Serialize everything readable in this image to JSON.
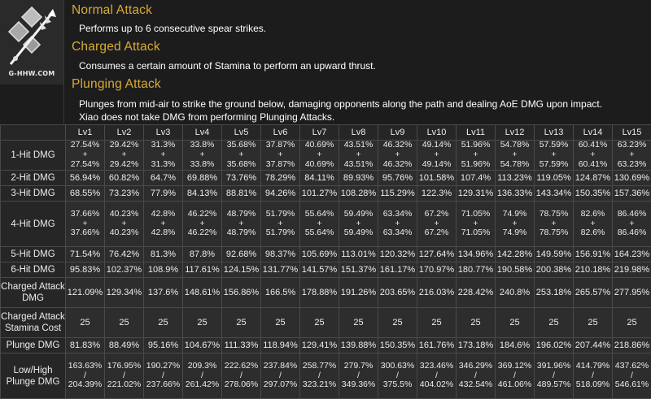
{
  "icon": {
    "name": "spear-talent-icon",
    "watermark": "G-HHW.COM"
  },
  "sections": [
    {
      "title": "Normal Attack",
      "desc": [
        "Performs up to 6 consecutive spear strikes."
      ]
    },
    {
      "title": "Charged Attack",
      "desc": [
        "Consumes a certain amount of Stamina to perform an upward thrust."
      ]
    },
    {
      "title": "Plunging Attack",
      "desc": [
        "Plunges from mid-air to strike the ground below, damaging opponents along the path and dealing AoE DMG upon impact.",
        "Xiao does not take DMG from performing Plunging Attacks."
      ]
    }
  ],
  "table": {
    "levels": [
      "Lv1",
      "Lv2",
      "Lv3",
      "Lv4",
      "Lv5",
      "Lv6",
      "Lv7",
      "Lv8",
      "Lv9",
      "Lv10",
      "Lv11",
      "Lv12",
      "Lv13",
      "Lv14",
      "Lv15"
    ],
    "rows": [
      {
        "label": "1-Hit DMG",
        "values": [
          [
            "27.54%",
            "+",
            "27.54%"
          ],
          [
            "29.42%",
            "+",
            "29.42%"
          ],
          [
            "31.3%",
            "+",
            "31.3%"
          ],
          [
            "33.8%",
            "+",
            "33.8%"
          ],
          [
            "35.68%",
            "+",
            "35.68%"
          ],
          [
            "37.87%",
            "+",
            "37.87%"
          ],
          [
            "40.69%",
            "+",
            "40.69%"
          ],
          [
            "43.51%",
            "+",
            "43.51%"
          ],
          [
            "46.32%",
            "+",
            "46.32%"
          ],
          [
            "49.14%",
            "+",
            "49.14%"
          ],
          [
            "51.96%",
            "+",
            "51.96%"
          ],
          [
            "54.78%",
            "+",
            "54.78%"
          ],
          [
            "57.59%",
            "+",
            "57.59%"
          ],
          [
            "60.41%",
            "+",
            "60.41%"
          ],
          [
            "63.23%",
            "+",
            "63.23%"
          ]
        ]
      },
      {
        "label": "2-Hit DMG",
        "values": [
          [
            "56.94%"
          ],
          [
            "60.82%"
          ],
          [
            "64.7%"
          ],
          [
            "69.88%"
          ],
          [
            "73.76%"
          ],
          [
            "78.29%"
          ],
          [
            "84.11%"
          ],
          [
            "89.93%"
          ],
          [
            "95.76%"
          ],
          [
            "101.58%"
          ],
          [
            "107.4%"
          ],
          [
            "113.23%"
          ],
          [
            "119.05%"
          ],
          [
            "124.87%"
          ],
          [
            "130.69%"
          ]
        ]
      },
      {
        "label": "3-Hit DMG",
        "values": [
          [
            "68.55%"
          ],
          [
            "73.23%"
          ],
          [
            "77.9%"
          ],
          [
            "84.13%"
          ],
          [
            "88.81%"
          ],
          [
            "94.26%"
          ],
          [
            "101.27%"
          ],
          [
            "108.28%"
          ],
          [
            "115.29%"
          ],
          [
            "122.3%"
          ],
          [
            "129.31%"
          ],
          [
            "136.33%"
          ],
          [
            "143.34%"
          ],
          [
            "150.35%"
          ],
          [
            "157.36%"
          ]
        ]
      },
      {
        "label": "4-Hit DMG",
        "values": [
          [
            "37.66%",
            "+",
            "37.66%"
          ],
          [
            "40.23%",
            "+",
            "40.23%"
          ],
          [
            "42.8%",
            "+",
            "42.8%"
          ],
          [
            "46.22%",
            "+",
            "46.22%"
          ],
          [
            "48.79%",
            "+",
            "48.79%"
          ],
          [
            "51.79%",
            "+",
            "51.79%"
          ],
          [
            "55.64%",
            "+",
            "55.64%"
          ],
          [
            "59.49%",
            "+",
            "59.49%"
          ],
          [
            "63.34%",
            "+",
            "63.34%"
          ],
          [
            "67.2%",
            "+",
            "67.2%"
          ],
          [
            "71.05%",
            "+",
            "71.05%"
          ],
          [
            "74.9%",
            "+",
            "74.9%"
          ],
          [
            "78.75%",
            "+",
            "78.75%"
          ],
          [
            "82.6%",
            "+",
            "82.6%"
          ],
          [
            "86.46%",
            "+",
            "86.46%"
          ]
        ]
      },
      {
        "label": "5-Hit DMG",
        "values": [
          [
            "71.54%"
          ],
          [
            "76.42%"
          ],
          [
            "81.3%"
          ],
          [
            "87.8%"
          ],
          [
            "92.68%"
          ],
          [
            "98.37%"
          ],
          [
            "105.69%"
          ],
          [
            "113.01%"
          ],
          [
            "120.32%"
          ],
          [
            "127.64%"
          ],
          [
            "134.96%"
          ],
          [
            "142.28%"
          ],
          [
            "149.59%"
          ],
          [
            "156.91%"
          ],
          [
            "164.23%"
          ]
        ]
      },
      {
        "label": "6-Hit DMG",
        "values": [
          [
            "95.83%"
          ],
          [
            "102.37%"
          ],
          [
            "108.9%"
          ],
          [
            "117.61%"
          ],
          [
            "124.15%"
          ],
          [
            "131.77%"
          ],
          [
            "141.57%"
          ],
          [
            "151.37%"
          ],
          [
            "161.17%"
          ],
          [
            "170.97%"
          ],
          [
            "180.77%"
          ],
          [
            "190.58%"
          ],
          [
            "200.38%"
          ],
          [
            "210.18%"
          ],
          [
            "219.98%"
          ]
        ]
      },
      {
        "label": "Charged Attack DMG",
        "values": [
          [
            "121.09%"
          ],
          [
            "129.34%"
          ],
          [
            "137.6%"
          ],
          [
            "148.61%"
          ],
          [
            "156.86%"
          ],
          [
            "166.5%"
          ],
          [
            "178.88%"
          ],
          [
            "191.26%"
          ],
          [
            "203.65%"
          ],
          [
            "216.03%"
          ],
          [
            "228.42%"
          ],
          [
            "240.8%"
          ],
          [
            "253.18%"
          ],
          [
            "265.57%"
          ],
          [
            "277.95%"
          ]
        ]
      },
      {
        "label": "Charged Attack Stamina Cost",
        "values": [
          [
            "25"
          ],
          [
            "25"
          ],
          [
            "25"
          ],
          [
            "25"
          ],
          [
            "25"
          ],
          [
            "25"
          ],
          [
            "25"
          ],
          [
            "25"
          ],
          [
            "25"
          ],
          [
            "25"
          ],
          [
            "25"
          ],
          [
            "25"
          ],
          [
            "25"
          ],
          [
            "25"
          ],
          [
            "25"
          ]
        ]
      },
      {
        "label": "Plunge DMG",
        "values": [
          [
            "81.83%"
          ],
          [
            "88.49%"
          ],
          [
            "95.16%"
          ],
          [
            "104.67%"
          ],
          [
            "111.33%"
          ],
          [
            "118.94%"
          ],
          [
            "129.41%"
          ],
          [
            "139.88%"
          ],
          [
            "150.35%"
          ],
          [
            "161.76%"
          ],
          [
            "173.18%"
          ],
          [
            "184.6%"
          ],
          [
            "196.02%"
          ],
          [
            "207.44%"
          ],
          [
            "218.86%"
          ]
        ]
      },
      {
        "label": "Low/High Plunge DMG",
        "values": [
          [
            "163.63%",
            "/",
            "204.39%"
          ],
          [
            "176.95%",
            "/",
            "221.02%"
          ],
          [
            "190.27%",
            "/",
            "237.66%"
          ],
          [
            "209.3%",
            "/",
            "261.42%"
          ],
          [
            "222.62%",
            "/",
            "278.06%"
          ],
          [
            "237.84%",
            "/",
            "297.07%"
          ],
          [
            "258.77%",
            "/",
            "323.21%"
          ],
          [
            "279.7%",
            "/",
            "349.36%"
          ],
          [
            "300.63%",
            "/",
            "375.5%"
          ],
          [
            "323.46%",
            "/",
            "404.02%"
          ],
          [
            "346.29%",
            "/",
            "432.54%"
          ],
          [
            "369.12%",
            "/",
            "461.06%"
          ],
          [
            "391.96%",
            "/",
            "489.57%"
          ],
          [
            "414.79%",
            "/",
            "518.09%"
          ],
          [
            "437.62%",
            "/",
            "546.61%"
          ]
        ]
      }
    ]
  }
}
